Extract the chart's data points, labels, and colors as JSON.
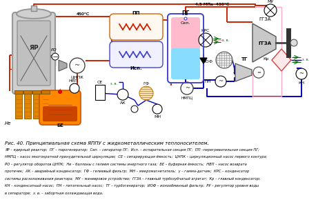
{
  "title": "Рис. 40. Принципиальная схема ЯППУ с жидкометаллическим теплоносителем.",
  "legend_lines": [
    "ЯР – ядерный реактор;  ПГ – парогенератор;  Сеп. – сепаратор ПГ;  Исп. – испарительная секция ПГ;  ПП –перегревательная секция ПГ;",
    "НМПЦ – насос многократной принудительной циркуляции;  СЕ – сепарирующая ёмкость;  ЦНПК – циркуляционный насос первого контура;",
    "РО – регулятор оборотов ЦНПК;  Не – баллоны с гелием системы инертного газа;  БЕ – буферная ёмкость;  НВП – насос возврата",
    "протечек;  АК – аварийный конденсатор;  ГФ – гелиевый фильтр;  МН – микромагнетатель;  γ – гамма-датчик;  КРС – конденсатор",
    "системы расхолаживания реактора;  МУ – маневровое устройство;  ГГЗА – главный турбозубчатый агрегат;  Кр – главный конденсатор;",
    "КН – конденсатный насос;  ПН – питательный насос;  ТГ – турбогенератор;  ИОФ – ионообменный фильтр;  РУ – регулятор уровня воды",
    "в сепараторе;  з. в. – забортная охлаждающая вода."
  ],
  "bg_color": "#ffffff",
  "colors": {
    "red": "#cc2200",
    "blue_dark": "#0000bb",
    "blue_mid": "#4444cc",
    "pink": "#ffaacc",
    "pink_line": "#ffaacc",
    "orange": "#ff8800",
    "gray_reactor": "#b8b8b8",
    "gray_dark": "#888888",
    "green": "#006600",
    "teal": "#008888"
  }
}
